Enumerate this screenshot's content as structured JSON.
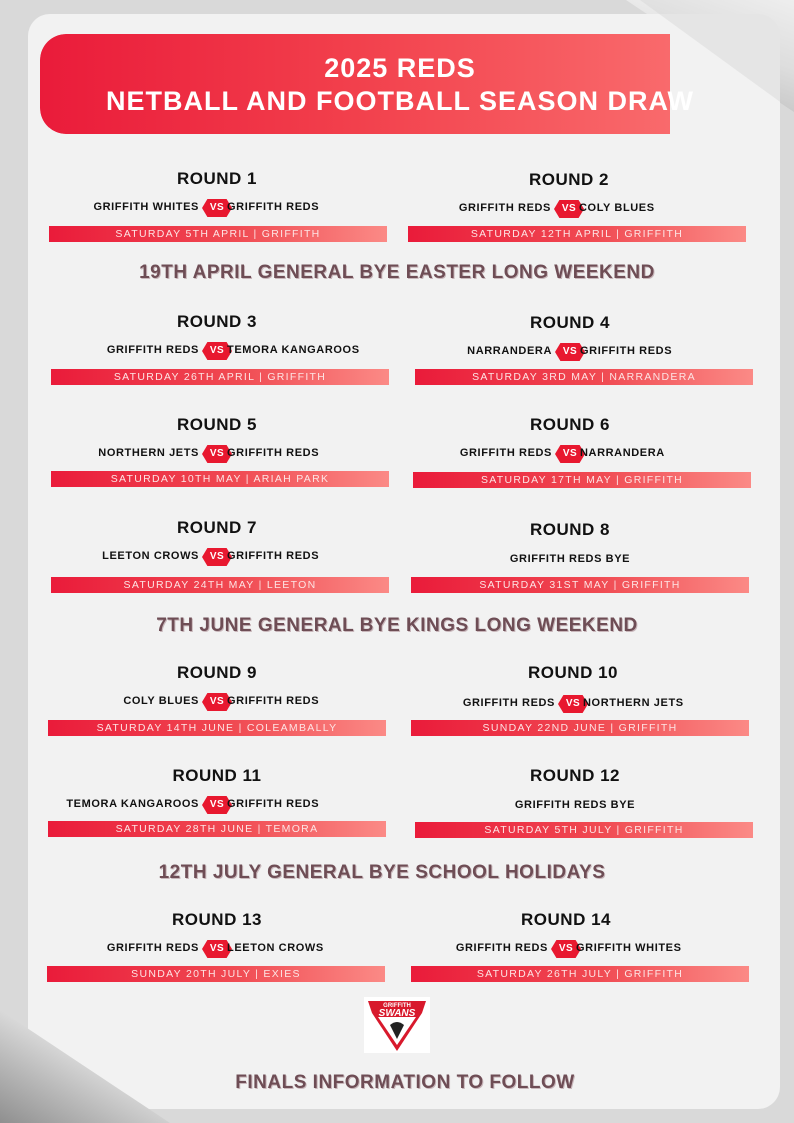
{
  "header": {
    "line1": "2025 REDS",
    "line2": "NETBALL AND FOOTBALL SEASON DRAW"
  },
  "vs_label": "VS",
  "rounds": [
    {
      "title": "ROUND 1",
      "home": "GRIFFITH WHITES",
      "away": "GRIFFITH REDS",
      "info": "SATURDAY 5TH APRIL | GRIFFITH"
    },
    {
      "title": "ROUND 2",
      "home": "GRIFFITH REDS",
      "away": "COLY BLUES",
      "info": "SATURDAY 12TH APRIL | GRIFFITH"
    },
    {
      "title": "ROUND 3",
      "home": "GRIFFITH REDS",
      "away": "TEMORA KANGAROOS",
      "info": "SATURDAY 26TH APRIL | GRIFFITH"
    },
    {
      "title": "ROUND 4",
      "home": "NARRANDERA",
      "away": "GRIFFITH REDS",
      "info": "SATURDAY 3RD MAY | NARRANDERA"
    },
    {
      "title": "ROUND 5",
      "home": "NORTHERN JETS",
      "away": "GRIFFITH REDS",
      "info": "SATURDAY 10TH MAY | ARIAH PARK"
    },
    {
      "title": "ROUND 6",
      "home": "GRIFFITH REDS",
      "away": "NARRANDERA",
      "info": "SATURDAY 17TH MAY | GRIFFITH"
    },
    {
      "title": "ROUND 7",
      "home": "LEETON CROWS",
      "away": "GRIFFITH REDS",
      "info": "SATURDAY 24TH MAY | LEETON"
    },
    {
      "title": "ROUND 8",
      "bye": "GRIFFITH REDS BYE",
      "info": "SATURDAY 31ST MAY | GRIFFITH"
    },
    {
      "title": "ROUND 9",
      "home": "COLY BLUES",
      "away": "GRIFFITH REDS",
      "info": "SATURDAY 14TH JUNE | COLEAMBALLY"
    },
    {
      "title": "ROUND 10",
      "home": "GRIFFITH REDS",
      "away": "NORTHERN JETS",
      "info": "SUNDAY 22ND JUNE | GRIFFITH"
    },
    {
      "title": "ROUND 11",
      "home": "TEMORA KANGAROOS",
      "away": "GRIFFITH REDS",
      "info": "SATURDAY 28TH JUNE | TEMORA"
    },
    {
      "title": "ROUND 12",
      "bye": "GRIFFITH REDS BYE",
      "info": "SATURDAY 5TH JULY | GRIFFITH"
    },
    {
      "title": "ROUND 13",
      "home": "GRIFFITH REDS",
      "away": "LEETON CROWS",
      "info": "SUNDAY 20TH JULY | EXIES"
    },
    {
      "title": "ROUND 14",
      "home": "GRIFFITH REDS",
      "away": "GRIFFITH WHITES",
      "info": "SATURDAY 26TH JULY | GRIFFITH"
    }
  ],
  "bye_notes": [
    "19TH APRIL GENERAL BYE  EASTER LONG WEEKEND",
    "7TH JUNE GENERAL  BYE  KINGS LONG WEEKEND",
    "12TH JULY GENERAL  BYE SCHOOL HOLIDAYS"
  ],
  "logo": {
    "text": "SWANS",
    "top_text": "GRIFFITH"
  },
  "footer": "FINALS INFORMATION TO FOLLOW",
  "colors": {
    "primary_red": "#e8182f",
    "accent_pink": "#fb8a86",
    "note_brown": "#6e4d55",
    "paper": "#f2f2f2"
  }
}
